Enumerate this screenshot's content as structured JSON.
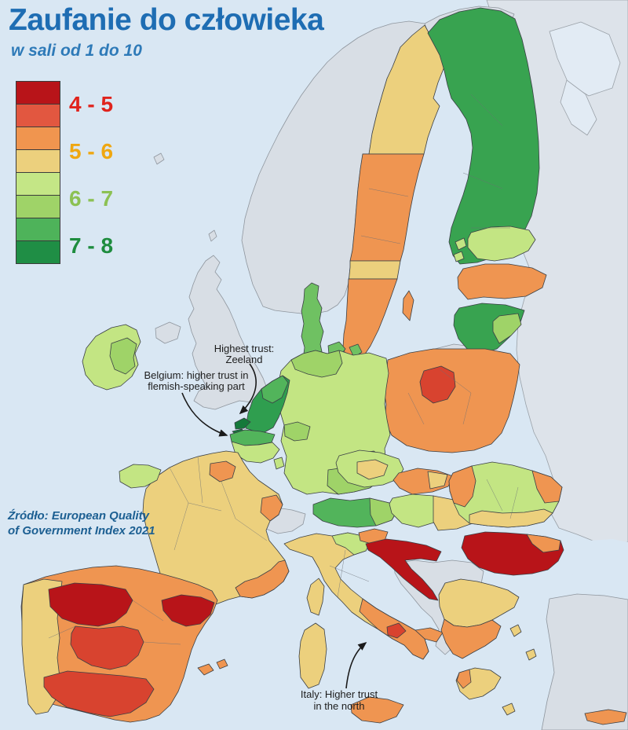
{
  "title": "Zaufanie do człowieka",
  "subtitle": "w sali od 1 do 10",
  "source": {
    "line1": "Źródło: European Quality",
    "line2": "of Government Index 2021"
  },
  "legend": {
    "blocks": [
      "#b81419",
      "#e25740",
      "#f0954f",
      "#ecd07d",
      "#c4e686",
      "#9fd368",
      "#4eb35a",
      "#1f8e45"
    ],
    "entries": [
      {
        "label": "4 - 5",
        "color": "#e0231c"
      },
      {
        "label": "5 - 6",
        "color": "#efa711"
      },
      {
        "label": "6 - 7",
        "color": "#8cc153"
      },
      {
        "label": "7 - 8",
        "color": "#1e8c3e"
      }
    ]
  },
  "annotations": {
    "zeeland": {
      "line1": "Highest trust:",
      "line2": "Zeeland"
    },
    "belgium": {
      "line1": "Belgium: higher trust in",
      "line2": "flemish-speaking part"
    },
    "italy": {
      "line1": "Italy: Higher trust",
      "line2": "in the north"
    }
  },
  "map": {
    "sea_color": "#d9e7f3",
    "noneu_color": "#d8dee5",
    "east_color": "#dde3ea",
    "regions": {
      "russia_east": {
        "color": "#dde3ea",
        "band": "no data"
      },
      "norway": {
        "color": "#d8dee5",
        "band": "no data"
      },
      "finnmark": {
        "color": "#d8dee5",
        "band": "no data"
      },
      "uk": {
        "color": "#d8dee5",
        "band": "no data"
      },
      "n_ireland": {
        "color": "#d8dee5",
        "band": "no data"
      },
      "faroe": {
        "color": "#d8dee5",
        "band": "no data"
      },
      "shetland": {
        "color": "#d8dee5",
        "band": "no data"
      },
      "switzerland": {
        "color": "#d8dee5",
        "band": "no data"
      },
      "kaliningrad": {
        "color": "#d8dee5",
        "band": "no data"
      },
      "balkans": {
        "color": "#d8dee5",
        "band": "no data"
      },
      "turkey": {
        "color": "#d8dee5",
        "band": "no data"
      },
      "sweden_north": {
        "color": "#ecd07d",
        "band": "5 - 6"
      },
      "sweden_mid": {
        "color": "#ef9551",
        "band": "5 - 6"
      },
      "sweden_stockholm": {
        "color": "#ecd07d",
        "band": "5 - 6"
      },
      "sweden_south": {
        "color": "#ef9551",
        "band": "5 - 6"
      },
      "gotland": {
        "color": "#ef9551",
        "band": "5 - 6"
      },
      "finland": {
        "color": "#38a350",
        "band": "7 - 8"
      },
      "denmark": {
        "color": "#6fc162",
        "band": "7 - 8"
      },
      "denmark_islands1": {
        "color": "#6fc162",
        "band": "7 - 8"
      },
      "denmark_islands2": {
        "color": "#6fc162",
        "band": "7 - 8"
      },
      "bornholm": {
        "color": "#6fc162",
        "band": "7 - 8"
      },
      "estonia": {
        "color": "#c3e583",
        "band": "6 - 7"
      },
      "estonia_islands": {
        "color": "#c3e583",
        "band": "6 - 7"
      },
      "latvia": {
        "color": "#ef9551",
        "band": "5 - 6"
      },
      "lithuania": {
        "color": "#38a350",
        "band": "7 - 8"
      },
      "vilnius": {
        "color": "#9fd368",
        "band": "6 - 7"
      },
      "poland": {
        "color": "#ef9551",
        "band": "5 - 6"
      },
      "kujawsko": {
        "color": "#d8432f",
        "band": "4 - 5"
      },
      "germany": {
        "color": "#c3e583",
        "band": "6 - 7"
      },
      "germany_nw": {
        "color": "#9fd368",
        "band": "6 - 7"
      },
      "germany_bavaria": {
        "color": "#9fd368",
        "band": "6 - 7"
      },
      "germany_west": {
        "color": "#9fd368",
        "band": "6 - 7"
      },
      "germany_saxony": {
        "color": "#9fd368",
        "band": "6 - 7"
      },
      "netherlands": {
        "color": "#2f9e4f",
        "band": "7 - 8"
      },
      "netherlands_inner": {
        "color": "#52b45b",
        "band": "7 - 8"
      },
      "zeeland1": {
        "color": "#15793a",
        "band": "7 - 8"
      },
      "zeeland2": {
        "color": "#15793a",
        "band": "7 - 8"
      },
      "belgium_flanders": {
        "color": "#52b45b",
        "band": "7 - 8"
      },
      "belgium_wallonia": {
        "color": "#c3e583",
        "band": "6 - 7"
      },
      "luxembourg": {
        "color": "#c3e583",
        "band": "6 - 7"
      },
      "france": {
        "color": "#ecd07d",
        "band": "5 - 6"
      },
      "brittany": {
        "color": "#c3e583",
        "band": "6 - 7"
      },
      "ile_de_france": {
        "color": "#ef9551",
        "band": "5 - 6"
      },
      "franche_comte": {
        "color": "#ef9551",
        "band": "5 - 6"
      },
      "provence": {
        "color": "#ef9551",
        "band": "5 - 6"
      },
      "corsica": {
        "color": "#ecd07d",
        "band": "5 - 6"
      },
      "ireland": {
        "color": "#c3e583",
        "band": "6 - 7"
      },
      "ireland_east": {
        "color": "#9fd368",
        "band": "6 - 7"
      },
      "portugal": {
        "color": "#ecd07d",
        "band": "5 - 6"
      },
      "spain": {
        "color": "#ef9551",
        "band": "5 - 6"
      },
      "castilla_leon": {
        "color": "#b81419",
        "band": "4 - 5"
      },
      "catalonia": {
        "color": "#b81419",
        "band": "4 - 5"
      },
      "castilla_la_mancha": {
        "color": "#d8432f",
        "band": "4 - 5"
      },
      "andalusia": {
        "color": "#d8432f",
        "band": "4 - 5"
      },
      "balearic1": {
        "color": "#ef9551",
        "band": "5 - 6"
      },
      "balearic2": {
        "color": "#ef9551",
        "band": "5 - 6"
      },
      "italy_north": {
        "color": "#ecd07d",
        "band": "5 - 6"
      },
      "italy_ne": {
        "color": "#c3e583",
        "band": "6 - 7"
      },
      "italy_south": {
        "color": "#ef9551",
        "band": "5 - 6"
      },
      "puglia": {
        "color": "#ef9551",
        "band": "5 - 6"
      },
      "molise": {
        "color": "#d8432f",
        "band": "4 - 5"
      },
      "sicily": {
        "color": "#ef9551",
        "band": "5 - 6"
      },
      "sardinia": {
        "color": "#ecd07d",
        "band": "5 - 6"
      },
      "czechia": {
        "color": "#c3e583",
        "band": "6 - 7"
      },
      "czech_center": {
        "color": "#ecd07d",
        "band": "5 - 6"
      },
      "austria": {
        "color": "#52b45b",
        "band": "7 - 8"
      },
      "austria_east": {
        "color": "#9fd368",
        "band": "6 - 7"
      },
      "slovakia": {
        "color": "#ef9551",
        "band": "5 - 6"
      },
      "slovakia_east": {
        "color": "#ecd07d",
        "band": "5 - 6"
      },
      "hungary_west": {
        "color": "#c3e583",
        "band": "6 - 7"
      },
      "hungary_east": {
        "color": "#ecd07d",
        "band": "5 - 6"
      },
      "slovenia": {
        "color": "#ef9551",
        "band": "5 - 6"
      },
      "croatia": {
        "color": "#b81419",
        "band": "4 - 5"
      },
      "romania": {
        "color": "#c3e583",
        "band": "6 - 7"
      },
      "romania_west": {
        "color": "#ef9551",
        "band": "5 - 6"
      },
      "romania_east": {
        "color": "#ef9551",
        "band": "5 - 6"
      },
      "romania_south": {
        "color": "#ecd07d",
        "band": "5 - 6"
      },
      "bulgaria": {
        "color": "#b81419",
        "band": "4 - 5"
      },
      "bulgaria_ne": {
        "color": "#ef9551",
        "band": "5 - 6"
      },
      "greece_north": {
        "color": "#ecd07d",
        "band": "5 - 6"
      },
      "greece_central": {
        "color": "#ef9551",
        "band": "5 - 6"
      },
      "peloponnese": {
        "color": "#ecd07d",
        "band": "5 - 6"
      },
      "peloponnese_west": {
        "color": "#ef9551",
        "band": "5 - 6"
      },
      "greek_island1": {
        "color": "#ecd07d",
        "band": "5 - 6"
      },
      "greek_island2": {
        "color": "#ecd07d",
        "band": "5 - 6"
      },
      "greek_island3": {
        "color": "#ecd07d",
        "band": "5 - 6"
      },
      "crete": {
        "color": "#ef9551",
        "band": "5 - 6"
      }
    }
  }
}
